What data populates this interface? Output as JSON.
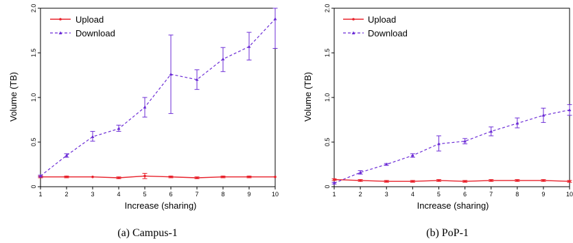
{
  "chart_data": [
    {
      "type": "line",
      "caption": "(a) Campus-1",
      "xlabel": "Increase (sharing)",
      "ylabel": "Volume (TB)",
      "x": [
        1,
        2,
        3,
        4,
        5,
        6,
        7,
        8,
        9,
        10
      ],
      "xticks": [
        "1",
        "2",
        "3",
        "4",
        "5",
        "6",
        "7",
        "8",
        "9",
        "10"
      ],
      "xlim": [
        1,
        10
      ],
      "ylim": [
        0,
        2.0
      ],
      "yticks": [
        "0",
        "0.5",
        "1.0",
        "1.5",
        "2.0"
      ],
      "legend_position": "top-left",
      "grid": false,
      "series": [
        {
          "name": "Upload",
          "color": "#e8202a",
          "line_style": "solid",
          "marker": "circle",
          "values": [
            0.11,
            0.11,
            0.11,
            0.1,
            0.12,
            0.11,
            0.1,
            0.11,
            0.11,
            0.11
          ],
          "err_low": [
            0.1,
            0.1,
            0.1,
            0.09,
            0.09,
            0.1,
            0.09,
            0.1,
            0.1,
            0.1
          ],
          "err_high": [
            0.12,
            0.12,
            0.11,
            0.11,
            0.15,
            0.12,
            0.11,
            0.12,
            0.12,
            0.11
          ]
        },
        {
          "name": "Download",
          "color": "#6b2bd6",
          "line_style": "dashed",
          "marker": "triangle",
          "values": [
            0.12,
            0.35,
            0.56,
            0.65,
            0.89,
            1.26,
            1.2,
            1.43,
            1.57,
            1.88
          ],
          "err_low": [
            0.11,
            0.33,
            0.51,
            0.62,
            0.78,
            0.82,
            1.09,
            1.29,
            1.42,
            1.55
          ],
          "err_high": [
            0.13,
            0.37,
            0.62,
            0.69,
            1.0,
            1.7,
            1.31,
            1.56,
            1.73,
            2.0
          ]
        }
      ]
    },
    {
      "type": "line",
      "caption": "(b) PoP-1",
      "xlabel": "Increase (sharing)",
      "ylabel": "Volume (TB)",
      "x": [
        1,
        2,
        3,
        4,
        5,
        6,
        7,
        8,
        9,
        10
      ],
      "xticks": [
        "1",
        "2",
        "3",
        "4",
        "5",
        "6",
        "7",
        "8",
        "9",
        "10"
      ],
      "xlim": [
        1,
        10
      ],
      "ylim": [
        0,
        2.0
      ],
      "yticks": [
        "0",
        "0.5",
        "1.0",
        "1.5",
        "2.0"
      ],
      "legend_position": "top-left",
      "grid": false,
      "series": [
        {
          "name": "Upload",
          "color": "#e8202a",
          "line_style": "solid",
          "marker": "circle",
          "values": [
            0.08,
            0.07,
            0.06,
            0.06,
            0.07,
            0.06,
            0.07,
            0.07,
            0.07,
            0.06
          ],
          "err_low": [
            0.07,
            0.06,
            0.05,
            0.05,
            0.06,
            0.05,
            0.06,
            0.06,
            0.06,
            0.05
          ],
          "err_high": [
            0.09,
            0.08,
            0.07,
            0.07,
            0.08,
            0.07,
            0.08,
            0.08,
            0.08,
            0.07
          ]
        },
        {
          "name": "Download",
          "color": "#6b2bd6",
          "line_style": "dashed",
          "marker": "triangle",
          "values": [
            0.04,
            0.16,
            0.25,
            0.35,
            0.48,
            0.51,
            0.62,
            0.71,
            0.8,
            0.86
          ],
          "err_low": [
            0.03,
            0.14,
            0.24,
            0.33,
            0.4,
            0.48,
            0.57,
            0.66,
            0.72,
            0.8
          ],
          "err_high": [
            0.05,
            0.18,
            0.26,
            0.37,
            0.57,
            0.54,
            0.67,
            0.77,
            0.88,
            0.92
          ]
        }
      ]
    }
  ]
}
